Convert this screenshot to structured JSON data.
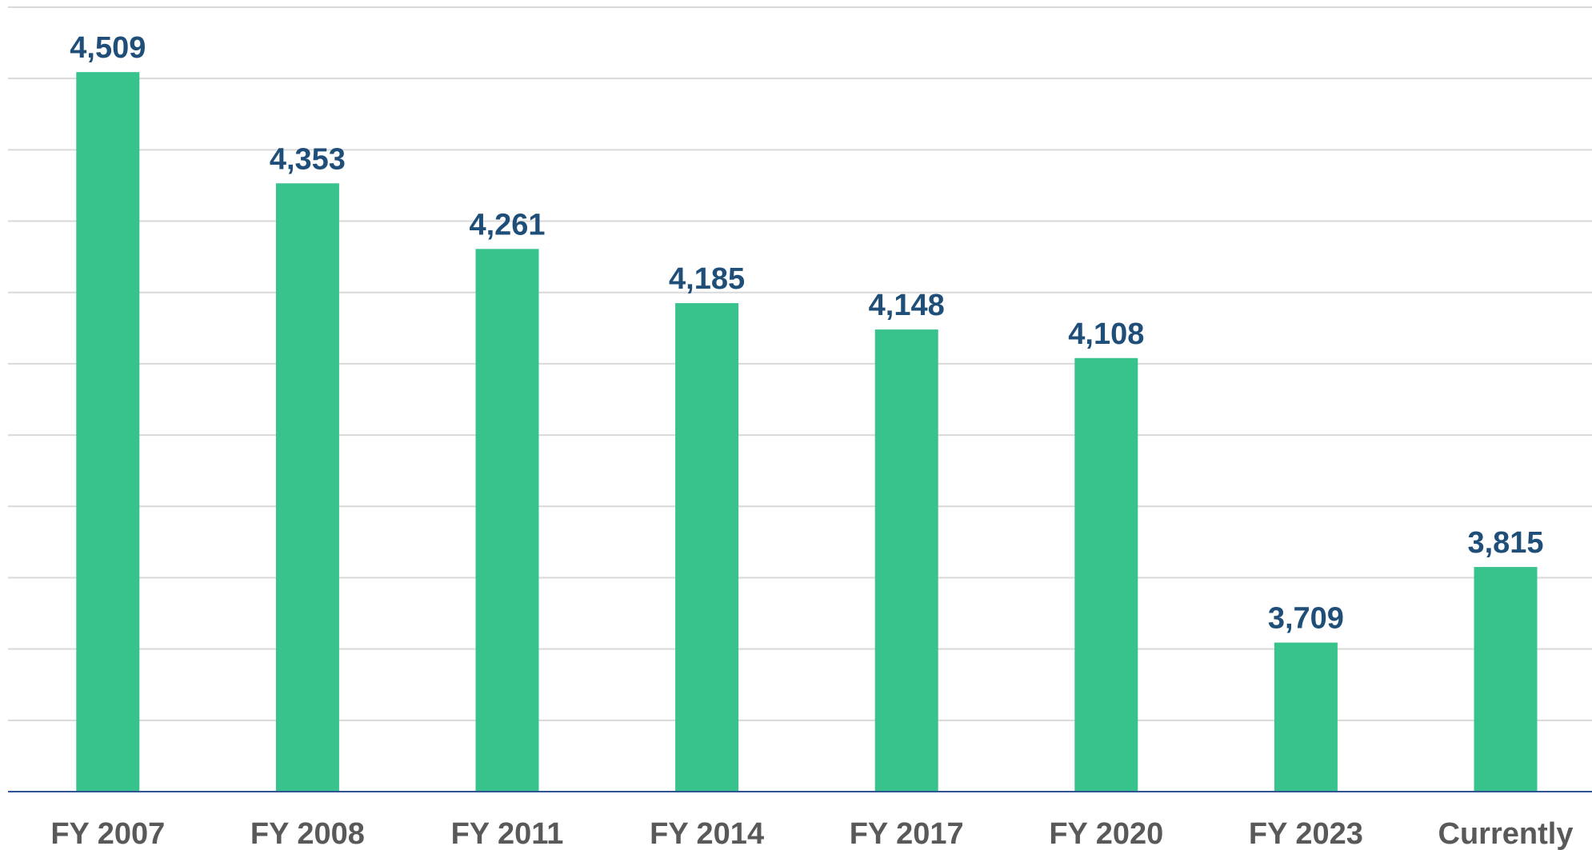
{
  "chart_data": {
    "type": "bar",
    "categories": [
      "FY 2007",
      "FY 2008",
      "FY 2011",
      "FY 2014",
      "FY 2017",
      "FY 2020",
      "FY 2023",
      "Currently"
    ],
    "values": [
      4509,
      4353,
      4261,
      4185,
      4148,
      4108,
      3709,
      3815
    ],
    "value_labels": [
      "4,509",
      "4,353",
      "4,261",
      "4,185",
      "4,148",
      "4,108",
      "3,709",
      "3,815"
    ],
    "color": "#38c28c",
    "ylim": [
      3500,
      4600
    ],
    "yticks": [
      3500,
      3600,
      3700,
      3800,
      3900,
      4000,
      4100,
      4200,
      4300,
      4400,
      4500,
      4600
    ],
    "grid": true
  }
}
